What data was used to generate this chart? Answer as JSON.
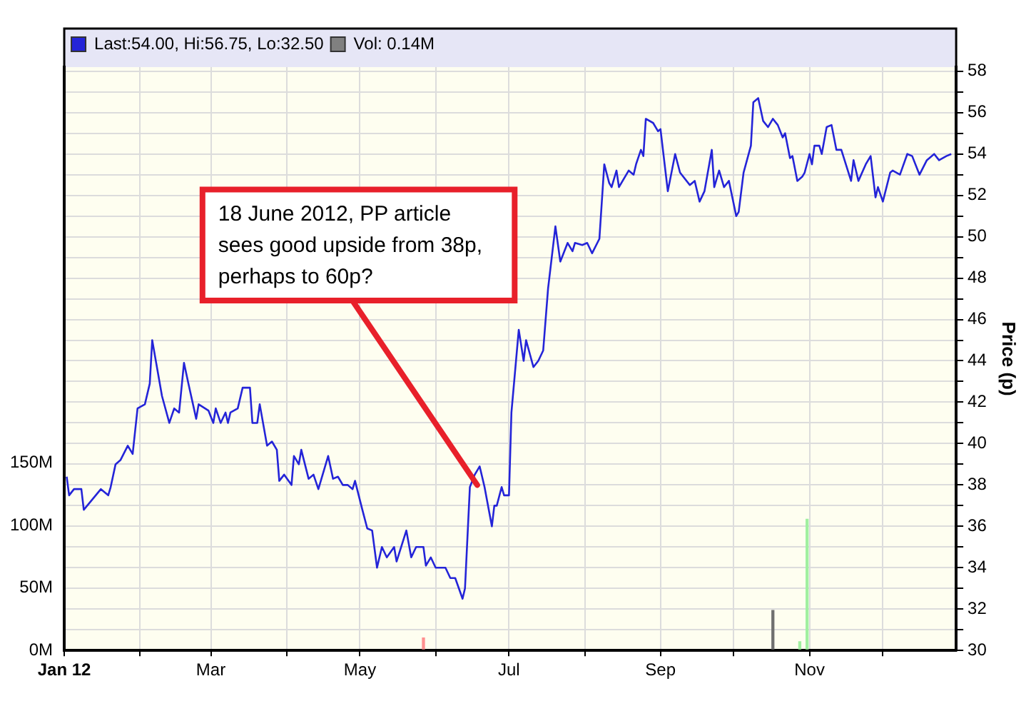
{
  "chart_data": {
    "type": "line",
    "ylabel": "Price (p)",
    "legend": "top",
    "xlim": [
      "2012-01-01",
      "2012-12-31"
    ],
    "xticks": [
      {
        "value": "2012-01-01",
        "label": "Jan 12"
      },
      {
        "value": "2012-02-01",
        "label": null
      },
      {
        "value": "2012-03-01",
        "label": "Mar"
      },
      {
        "value": "2012-04-01",
        "label": null
      },
      {
        "value": "2012-05-01",
        "label": "May"
      },
      {
        "value": "2012-06-01",
        "label": null
      },
      {
        "value": "2012-07-01",
        "label": "Jul"
      },
      {
        "value": "2012-08-01",
        "label": null
      },
      {
        "value": "2012-09-01",
        "label": "Sep"
      },
      {
        "value": "2012-10-01",
        "label": null
      },
      {
        "value": "2012-11-01",
        "label": "Nov"
      },
      {
        "value": "2012-12-01",
        "label": null
      }
    ],
    "ylim": [
      30,
      58.2
    ],
    "yticks": [
      30,
      {
        "value": 31,
        "label": null
      },
      32,
      {
        "value": 33,
        "label": null
      },
      34,
      {
        "value": 35,
        "label": null
      },
      36,
      {
        "value": 37,
        "label": null
      },
      38,
      {
        "value": 39,
        "label": null
      },
      40,
      {
        "value": 41,
        "label": null
      },
      42,
      {
        "value": 43,
        "label": null
      },
      44,
      {
        "value": 45,
        "label": null
      },
      46,
      {
        "value": 47,
        "label": null
      },
      48,
      {
        "value": 49,
        "label": null
      },
      50,
      {
        "value": 51,
        "label": null
      },
      52,
      {
        "value": 53,
        "label": null
      },
      54,
      {
        "value": 55,
        "label": null
      },
      56,
      {
        "value": 57,
        "label": null
      },
      58
    ],
    "y2lim": [
      0,
      467
    ],
    "y2ticks": [
      {
        "value": 0,
        "label": "0M"
      },
      {
        "value": 50,
        "label": "50M"
      },
      {
        "value": 100,
        "label": "100M"
      },
      {
        "value": 150,
        "label": "150M"
      }
    ],
    "grid": true,
    "series": [
      {
        "name": "Last:54.00, Hi:56.75, Lo:32.50",
        "color": "#2424d8",
        "x": [
          "2012-01-02",
          "2012-01-03",
          "2012-01-05",
          "2012-01-08",
          "2012-01-09",
          "2012-01-16",
          "2012-01-19",
          "2012-01-20",
          "2012-01-22",
          "2012-01-24",
          "2012-01-27",
          "2012-01-29",
          "2012-01-31",
          "2012-02-03",
          "2012-02-05",
          "2012-02-06",
          "2012-02-10",
          "2012-02-13",
          "2012-02-15",
          "2012-02-17",
          "2012-02-19",
          "2012-02-21",
          "2012-02-24",
          "2012-02-25",
          "2012-02-29",
          "2012-03-02",
          "2012-03-03",
          "2012-03-05",
          "2012-03-07",
          "2012-03-08",
          "2012-03-09",
          "2012-03-12",
          "2012-03-14",
          "2012-03-17",
          "2012-03-18",
          "2012-03-20",
          "2012-03-21",
          "2012-03-24",
          "2012-03-26",
          "2012-03-28",
          "2012-03-29",
          "2012-03-31",
          "2012-04-03",
          "2012-04-04",
          "2012-04-06",
          "2012-04-07",
          "2012-04-10",
          "2012-04-12",
          "2012-04-14",
          "2012-04-18",
          "2012-04-20",
          "2012-04-22",
          "2012-04-24",
          "2012-04-26",
          "2012-04-28",
          "2012-04-29",
          "2012-05-02",
          "2012-05-04",
          "2012-05-06",
          "2012-05-08",
          "2012-05-10",
          "2012-05-12",
          "2012-05-15",
          "2012-05-16",
          "2012-05-20",
          "2012-05-22",
          "2012-05-24",
          "2012-05-27",
          "2012-05-28",
          "2012-05-30",
          "2012-06-01",
          "2012-06-05",
          "2012-06-07",
          "2012-06-09",
          "2012-06-12",
          "2012-06-13",
          "2012-06-15",
          "2012-06-17",
          "2012-06-19",
          "2012-06-21",
          "2012-06-24",
          "2012-06-25",
          "2012-06-26",
          "2012-06-28",
          "2012-06-29",
          "2012-07-01",
          "2012-07-02",
          "2012-07-05",
          "2012-07-07",
          "2012-07-08",
          "2012-07-11",
          "2012-07-13",
          "2012-07-15",
          "2012-07-17",
          "2012-07-20",
          "2012-07-22",
          "2012-07-25",
          "2012-07-27",
          "2012-07-28",
          "2012-07-31",
          "2012-08-02",
          "2012-08-04",
          "2012-08-07",
          "2012-08-09",
          "2012-08-11",
          "2012-08-12",
          "2012-08-14",
          "2012-08-15",
          "2012-08-19",
          "2012-08-21",
          "2012-08-22",
          "2012-08-24",
          "2012-08-25",
          "2012-08-26",
          "2012-08-29",
          "2012-08-31",
          "2012-09-01",
          "2012-09-04",
          "2012-09-07",
          "2012-09-09",
          "2012-09-13",
          "2012-09-15",
          "2012-09-17",
          "2012-09-19",
          "2012-09-22",
          "2012-09-23",
          "2012-09-25",
          "2012-09-27",
          "2012-09-29",
          "2012-10-02",
          "2012-10-03",
          "2012-10-05",
          "2012-10-08",
          "2012-10-09",
          "2012-10-11",
          "2012-10-13",
          "2012-10-15",
          "2012-10-17",
          "2012-10-19",
          "2012-10-21",
          "2012-10-22",
          "2012-10-24",
          "2012-10-25",
          "2012-10-27",
          "2012-10-29",
          "2012-10-30",
          "2012-11-01",
          "2012-11-02",
          "2012-11-03",
          "2012-11-05",
          "2012-11-06",
          "2012-11-08",
          "2012-11-10",
          "2012-11-12",
          "2012-11-14",
          "2012-11-18",
          "2012-11-19",
          "2012-11-21",
          "2012-11-24",
          "2012-11-26",
          "2012-11-28",
          "2012-11-29",
          "2012-12-01",
          "2012-12-04",
          "2012-12-05",
          "2012-12-08",
          "2012-12-11",
          "2012-12-13",
          "2012-12-16",
          "2012-12-19",
          "2012-12-22",
          "2012-12-24",
          "2012-12-27",
          "2012-12-29"
        ],
        "values": [
          38.4,
          37.5,
          37.8,
          37.8,
          36.8,
          37.8,
          37.5,
          37.9,
          39.0,
          39.2,
          39.9,
          39.5,
          41.7,
          41.9,
          42.9,
          45.0,
          42.3,
          41.0,
          41.7,
          41.5,
          43.9,
          42.8,
          41.2,
          41.9,
          41.6,
          41.0,
          41.7,
          41.0,
          41.5,
          41.0,
          41.5,
          41.7,
          42.7,
          42.7,
          41.0,
          41.0,
          41.9,
          39.9,
          40.1,
          39.7,
          38.2,
          38.5,
          38.0,
          39.4,
          39.0,
          39.7,
          38.3,
          38.5,
          37.8,
          39.4,
          38.3,
          38.4,
          38.0,
          38.0,
          37.8,
          38.2,
          36.8,
          35.9,
          35.8,
          34.0,
          35.0,
          34.5,
          35.0,
          34.3,
          35.8,
          34.5,
          35.0,
          35.0,
          34.1,
          34.5,
          34.0,
          34.0,
          33.5,
          33.5,
          32.5,
          33.0,
          37.9,
          38.5,
          38.9,
          37.9,
          36.0,
          37.0,
          37.0,
          37.9,
          37.5,
          37.5,
          41.5,
          45.5,
          44.0,
          45.0,
          43.7,
          44.0,
          44.5,
          47.5,
          50.5,
          48.8,
          49.7,
          49.3,
          49.7,
          49.6,
          49.7,
          49.2,
          49.9,
          53.5,
          52.6,
          52.4,
          53.2,
          52.4,
          53.2,
          53.0,
          53.5,
          54.2,
          53.9,
          55.7,
          55.5,
          55.1,
          55.2,
          52.2,
          54.0,
          53.1,
          52.5,
          52.7,
          51.7,
          52.2,
          54.2,
          52.4,
          53.2,
          52.4,
          52.7,
          51.0,
          51.2,
          53.1,
          54.4,
          56.5,
          56.7,
          55.6,
          55.3,
          55.7,
          55.4,
          54.8,
          55.0,
          53.8,
          53.9,
          52.7,
          52.9,
          53.1,
          54.0,
          53.5,
          54.4,
          54.4,
          54.0,
          55.3,
          55.4,
          54.2,
          54.2,
          52.7,
          53.7,
          52.7,
          53.5,
          53.9,
          51.9,
          52.4,
          51.7,
          53.1,
          53.2,
          53.0,
          54.0,
          53.9,
          53.0,
          53.7,
          54.0,
          53.7,
          53.9,
          54.0
        ]
      },
      {
        "name": "Vol: 0.14M",
        "type": "bar",
        "axis": "y2",
        "color": "#808080",
        "x": [
          "2012-05-27",
          "2012-10-17",
          "2012-10-28",
          "2012-10-31"
        ],
        "values": [
          10,
          32,
          7,
          105
        ],
        "colors": [
          "#ff9090",
          "#707070",
          "#a0f0a0",
          "#a0f0a0"
        ]
      }
    ],
    "annotations": [
      {
        "text": "18 June 2012, PP article sees good upside from 38p, perhaps to 60p?",
        "x": "2012-06-18",
        "y": 38
      }
    ]
  }
}
